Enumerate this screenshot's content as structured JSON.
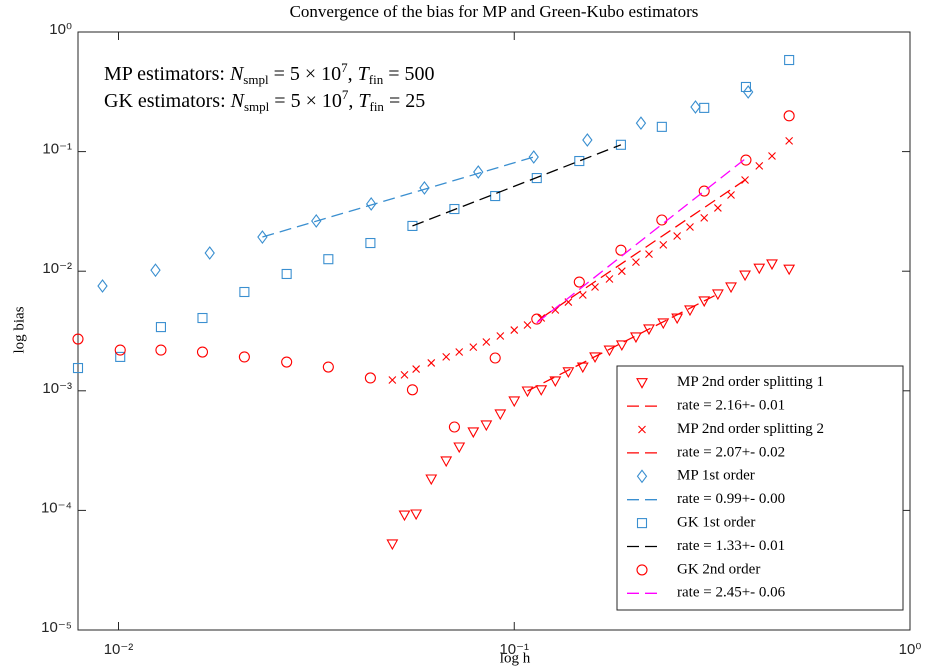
{
  "chart_data": {
    "type": "scatter",
    "title": "Convergence of the bias for MP and Green-Kubo estimators",
    "xlabel": "log h",
    "ylabel": "log bias",
    "annotations": [
      [
        "MP estimators: ",
        "N",
        "smpl",
        " = 5 × 10",
        "7",
        ", ",
        "T",
        "fin",
        " = 500"
      ],
      [
        "GK estimators: ",
        "N",
        "smpl",
        " = 5 × 10",
        "7",
        ", ",
        "T",
        "fin",
        " = 25"
      ]
    ],
    "xscale": "log",
    "yscale": "log",
    "grid": false,
    "legend": "lower right",
    "xlim": [
      0.0079,
      1
    ],
    "ylim": [
      1e-05,
      1
    ],
    "xticks": [
      {
        "value": 0.01,
        "label": "10⁻²"
      },
      {
        "value": 0.1,
        "label": "10⁻¹"
      },
      {
        "value": 1,
        "label": "10⁰"
      }
    ],
    "yticks": [
      {
        "value": 1e-05,
        "label": "10⁻⁵"
      },
      {
        "value": 0.0001,
        "label": "10⁻⁴"
      },
      {
        "value": 0.001,
        "label": "10⁻³"
      },
      {
        "value": 0.01,
        "label": "10⁻²"
      },
      {
        "value": 0.1,
        "label": "10⁻¹"
      },
      {
        "value": 1,
        "label": "10⁰"
      }
    ],
    "series": [
      {
        "name": "MP 2nd order splitting 1",
        "color": "#ff0000",
        "marker": "triangle-down",
        "x": [
          0.0492,
          0.0528,
          0.0565,
          0.0617,
          0.0673,
          0.0726,
          0.0788,
          0.085,
          0.0922,
          0.1,
          0.108,
          0.117,
          0.127,
          0.137,
          0.149,
          0.16,
          0.174,
          0.187,
          0.203,
          0.219,
          0.238,
          0.258,
          0.278,
          0.302,
          0.327,
          0.353,
          0.383,
          0.416,
          0.448,
          0.495
        ],
        "values": [
          5.24e-05,
          9.15e-05,
          9.33e-05,
          0.000183,
          0.000259,
          0.000339,
          0.000453,
          0.000518,
          0.00064,
          0.000822,
          0.000996,
          0.00102,
          0.00121,
          0.00144,
          0.00158,
          0.00192,
          0.00219,
          0.00242,
          0.00282,
          0.00329,
          0.00369,
          0.00406,
          0.00474,
          0.00564,
          0.00645,
          0.00738,
          0.00929,
          0.0106,
          0.0115,
          0.0104
        ]
      },
      {
        "name": "rate = 2.16+- 0.01",
        "color": "#ff0000",
        "line": "dashed",
        "x": [
          0.108,
          0.327
        ],
        "values": [
          0.000996,
          0.00645
        ]
      },
      {
        "name": "MP 2nd order splitting 2",
        "color": "#ff0000",
        "marker": "x",
        "x": [
          0.0492,
          0.0528,
          0.0565,
          0.0617,
          0.0673,
          0.0726,
          0.0788,
          0.085,
          0.0922,
          0.1,
          0.108,
          0.117,
          0.127,
          0.137,
          0.149,
          0.16,
          0.174,
          0.187,
          0.203,
          0.219,
          0.238,
          0.258,
          0.278,
          0.302,
          0.327,
          0.353,
          0.383,
          0.416,
          0.448,
          0.495
        ],
        "values": [
          0.00123,
          0.00136,
          0.00152,
          0.00171,
          0.00192,
          0.00211,
          0.00232,
          0.00256,
          0.00287,
          0.00322,
          0.00355,
          0.00406,
          0.00474,
          0.00552,
          0.00632,
          0.00738,
          0.00861,
          0.01,
          0.0119,
          0.0139,
          0.0166,
          0.0197,
          0.0234,
          0.0279,
          0.0338,
          0.0434,
          0.0579,
          0.0759,
          0.0918,
          0.123
        ]
      },
      {
        "name": "rate = 2.07+- 0.02",
        "color": "#ff0000",
        "line": "dashed",
        "x": [
          0.117,
          0.383
        ],
        "values": [
          0.00406,
          0.0579
        ]
      },
      {
        "name": "MP 1st order",
        "color": "#3a8fd0",
        "marker": "diamond",
        "x": [
          0.00911,
          0.0124,
          0.017,
          0.0231,
          0.0316,
          0.0435,
          0.0593,
          0.0811,
          0.112,
          0.153,
          0.209,
          0.287,
          0.39
        ],
        "values": [
          0.00752,
          0.0102,
          0.0142,
          0.0193,
          0.0263,
          0.0365,
          0.0497,
          0.0675,
          0.0901,
          0.125,
          0.173,
          0.236,
          0.315
        ]
      },
      {
        "name": "rate = 0.99+- 0.00",
        "color": "#3a8fd0",
        "line": "dashed",
        "x": [
          0.0231,
          0.112
        ],
        "values": [
          0.0193,
          0.0901
        ]
      },
      {
        "name": "GK 1st order",
        "color": "#3a8fd0",
        "marker": "square",
        "x": [
          0.0079,
          0.0101,
          0.0128,
          0.0163,
          0.0208,
          0.0266,
          0.0339,
          0.0433,
          0.0553,
          0.0706,
          0.0895,
          0.114,
          0.146,
          0.186,
          0.236,
          0.302,
          0.385,
          0.495
        ],
        "values": [
          0.00155,
          0.00192,
          0.00341,
          0.00406,
          0.0067,
          0.00948,
          0.0126,
          0.0172,
          0.0239,
          0.0331,
          0.0425,
          0.0601,
          0.0834,
          0.114,
          0.161,
          0.232,
          0.347,
          0.583
        ]
      },
      {
        "name": "rate = 1.33+- 0.01",
        "color": "#000000",
        "line": "dashed",
        "x": [
          0.0553,
          0.186
        ],
        "values": [
          0.0239,
          0.114
        ]
      },
      {
        "name": "GK 2nd order",
        "color": "#ff0000",
        "marker": "circle",
        "x": [
          0.0079,
          0.0101,
          0.0128,
          0.0163,
          0.0208,
          0.0266,
          0.0339,
          0.0433,
          0.0553,
          0.0706,
          0.0895,
          0.114,
          0.146,
          0.186,
          0.236,
          0.302,
          0.385,
          0.495
        ],
        "values": [
          0.00271,
          0.00219,
          0.00219,
          0.00211,
          0.00192,
          0.00174,
          0.00158,
          0.00128,
          0.00102,
          0.000498,
          0.00188,
          0.00398,
          0.00812,
          0.015,
          0.0268,
          0.0468,
          0.085,
          0.199
        ]
      },
      {
        "name": "rate = 2.45+- 0.06",
        "color": "#ff00ff",
        "line": "dashed",
        "x": [
          0.114,
          0.385
        ],
        "values": [
          0.0037,
          0.088
        ]
      }
    ]
  }
}
